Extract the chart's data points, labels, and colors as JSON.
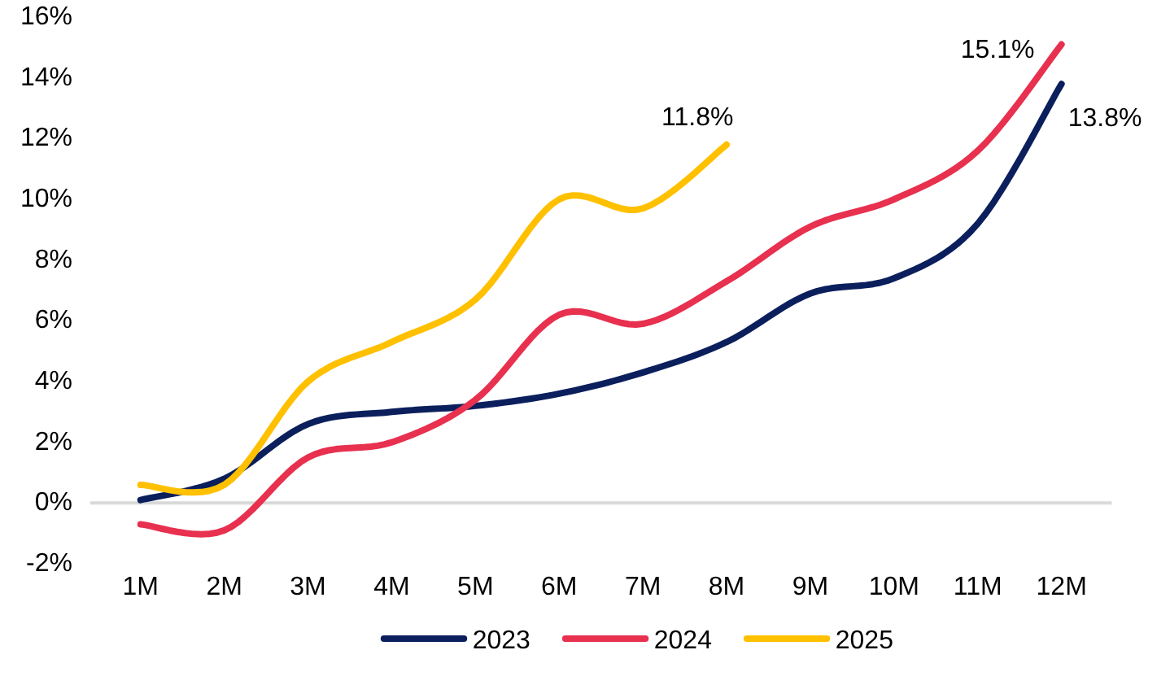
{
  "chart_data": {
    "type": "line",
    "categories": [
      "1M",
      "2M",
      "3M",
      "4M",
      "5M",
      "6M",
      "7M",
      "8M",
      "9M",
      "10M",
      "11M",
      "12M"
    ],
    "series": [
      {
        "name": "2023",
        "color": "#0b1f5c",
        "values": [
          0.1,
          0.8,
          2.6,
          3.0,
          3.2,
          3.6,
          4.3,
          5.3,
          6.9,
          7.4,
          9.2,
          13.8
        ],
        "value_labels": [
          null,
          null,
          null,
          null,
          null,
          null,
          null,
          null,
          null,
          null,
          null,
          "13.8%"
        ]
      },
      {
        "name": "2024",
        "color": "#e8304f",
        "values": [
          -0.7,
          -0.9,
          1.5,
          2.0,
          3.4,
          6.2,
          5.9,
          7.3,
          9.1,
          10.0,
          11.6,
          15.1
        ],
        "value_labels": [
          null,
          null,
          null,
          null,
          null,
          null,
          null,
          null,
          null,
          null,
          null,
          "15.1%"
        ]
      },
      {
        "name": "2025",
        "color": "#ffc000",
        "values": [
          0.6,
          0.6,
          4.0,
          5.3,
          6.7,
          10.0,
          9.7,
          11.8,
          null,
          null,
          null,
          null
        ],
        "value_labels": [
          null,
          null,
          null,
          null,
          null,
          null,
          null,
          "11.8%",
          null,
          null,
          null,
          null
        ]
      }
    ],
    "ylim": [
      -2,
      16
    ],
    "yticks": [
      {
        "value": -2,
        "label": "-2%"
      },
      {
        "value": 0,
        "label": "0%"
      },
      {
        "value": 2,
        "label": "2%"
      },
      {
        "value": 4,
        "label": "4%"
      },
      {
        "value": 6,
        "label": "6%"
      },
      {
        "value": 8,
        "label": "8%"
      },
      {
        "value": 10,
        "label": "10%"
      },
      {
        "value": 12,
        "label": "12%"
      },
      {
        "value": 14,
        "label": "14%"
      },
      {
        "value": 16,
        "label": "16%"
      }
    ],
    "ref_lines": [
      {
        "axis": "y",
        "value": 0,
        "label": null,
        "color": "#d9d9d9"
      }
    ],
    "grid": false,
    "legend": "bottom",
    "marker": "none",
    "line_style": "solid"
  }
}
